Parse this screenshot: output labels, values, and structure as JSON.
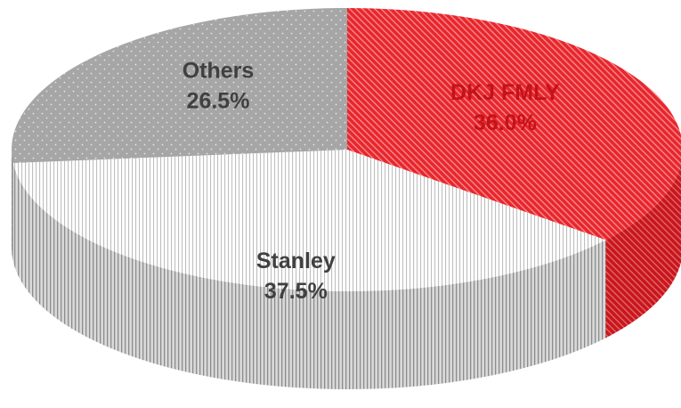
{
  "chart_data": {
    "type": "pie",
    "style": "3d",
    "title": "",
    "legend": "none",
    "slices": [
      {
        "label": "DKJ FMLY",
        "value": 36.0,
        "display": "36.0%",
        "color": "#e8262c",
        "text_color": "#c41218",
        "pattern": "diagonal-stripes"
      },
      {
        "label": "Stanley",
        "value": 37.5,
        "display": "37.5%",
        "color": "#ffffff",
        "text_color": "#404040",
        "pattern": "vertical-stripes"
      },
      {
        "label": "Others",
        "value": 26.5,
        "display": "26.5%",
        "color": "#a6a6a6",
        "text_color": "#404040",
        "pattern": "dots"
      }
    ]
  }
}
